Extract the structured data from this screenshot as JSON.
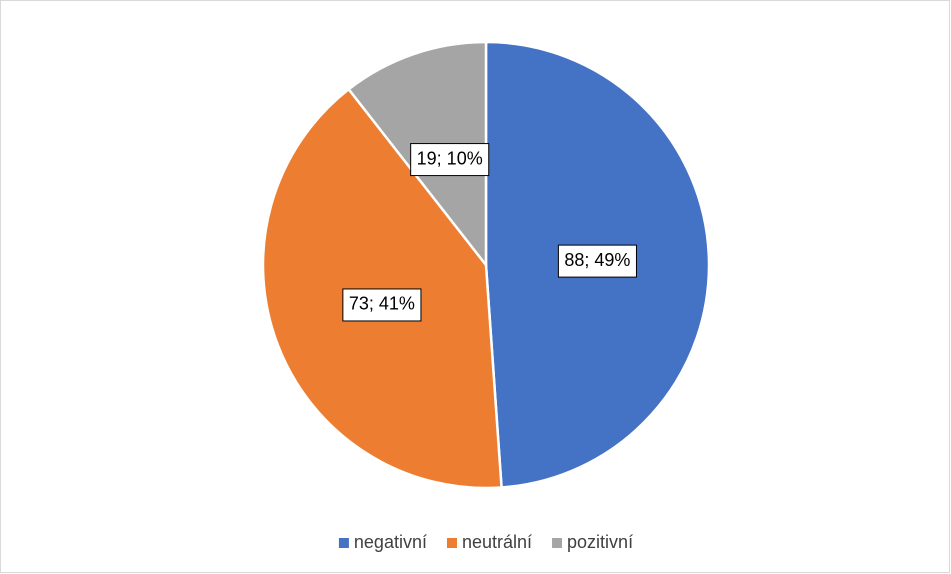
{
  "chart_data": {
    "type": "pie",
    "categories": [
      "negativní",
      "neutrální",
      "pozitivní"
    ],
    "values": [
      88,
      73,
      19
    ],
    "value_labels": [
      "88; 49%",
      "73; 41%",
      "19; 10%"
    ],
    "colors": [
      "#4472c4",
      "#ed7d31",
      "#a5a5a5"
    ],
    "legend": "bottom"
  }
}
